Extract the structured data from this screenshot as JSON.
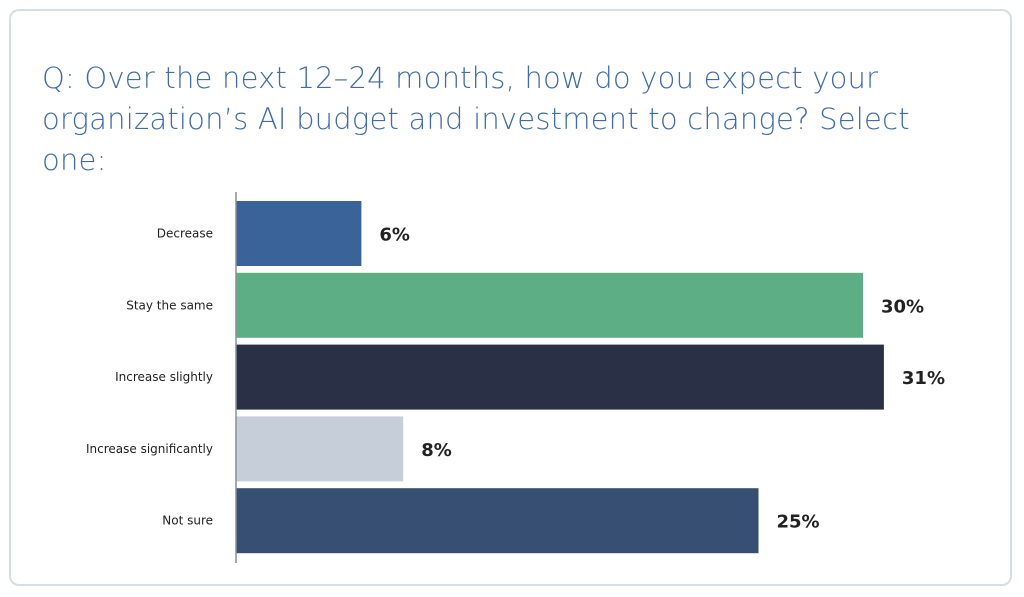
{
  "chart_data": {
    "type": "bar",
    "orientation": "horizontal",
    "title": "Q: Over the next 12–24 months, how do you expect your organization’s AI budget and investment to change? Select one:",
    "categories": [
      "Decrease",
      "Stay the same",
      "Increase slightly",
      "Increase significantly",
      "Not sure"
    ],
    "values": [
      6,
      30,
      31,
      8,
      25
    ],
    "data_labels": [
      "6%",
      "30%",
      "31%",
      "8%",
      "25%"
    ],
    "colors": [
      "#3a6399",
      "#5dae85",
      "#2a3146",
      "#c5ced9",
      "#364f73"
    ],
    "unit": "%",
    "xlim": [
      0,
      31
    ],
    "grid": false,
    "legend": "none"
  }
}
